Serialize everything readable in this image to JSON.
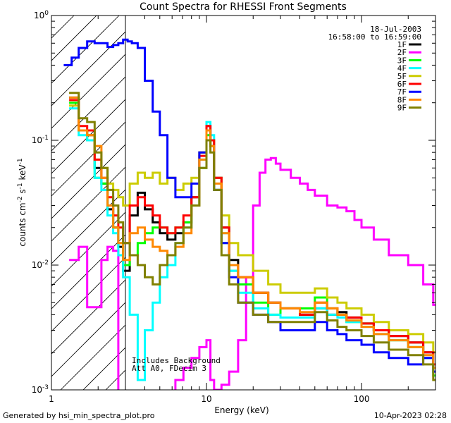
{
  "chart_data": {
    "type": "line",
    "title": "Count Spectra for RHESSI Front Segments",
    "xlabel": "Energy (keV)",
    "ylabel_parts": [
      "counts cm",
      "-2",
      " s",
      "-1",
      " keV",
      "-1"
    ],
    "xscale": "log",
    "yscale": "log",
    "xlim": [
      1.0,
      300.0
    ],
    "ylim": [
      0.001,
      1.0
    ],
    "x_tick_labels": [
      {
        "value": 1,
        "label": "1"
      },
      {
        "value": 10,
        "label": "10"
      },
      {
        "value": 100,
        "label": "100"
      }
    ],
    "y_tick_labels": [
      {
        "value": 1.0,
        "base": "10",
        "exp": "0"
      },
      {
        "value": 0.1,
        "base": "10",
        "exp": "-1"
      },
      {
        "value": 0.01,
        "base": "10",
        "exp": "-2"
      },
      {
        "value": 0.001,
        "base": "10",
        "exp": "-3"
      }
    ],
    "hatched_region_keV": [
      1.0,
      3.0
    ],
    "legend_position": "top-right",
    "date": "18-Jul-2003",
    "time_range": "16:58:00 to 16:59:00",
    "annotation_lines": [
      "Includes Background",
      "Att A0, FDecim 3"
    ],
    "series": [
      {
        "name": "1F",
        "color": "#000000",
        "x": [
          1.3,
          1.5,
          1.7,
          1.9,
          2.1,
          2.3,
          2.5,
          2.7,
          2.9,
          3.2,
          3.6,
          4.0,
          4.5,
          5.0,
          5.6,
          6.3,
          7.1,
          8.0,
          9.0,
          10.0,
          10.6,
          11.2,
          12.5,
          14,
          16,
          20,
          25,
          30,
          40,
          50,
          60,
          70,
          80,
          100,
          120,
          150,
          200,
          250,
          290
        ],
        "y": [
          0.22,
          0.12,
          0.11,
          0.06,
          0.045,
          0.028,
          0.02,
          0.014,
          0.009,
          0.025,
          0.038,
          0.028,
          0.022,
          0.018,
          0.016,
          0.018,
          0.022,
          0.035,
          0.08,
          0.13,
          0.1,
          0.05,
          0.02,
          0.011,
          0.008,
          0.006,
          0.005,
          0.0045,
          0.004,
          0.0045,
          0.004,
          0.0042,
          0.0038,
          0.0034,
          0.003,
          0.0027,
          0.0024,
          0.002,
          0.0015
        ]
      },
      {
        "name": "2F",
        "color": "#ff00ff",
        "x": [
          1.3,
          1.5,
          1.7,
          1.9,
          2.1,
          2.3,
          2.5,
          2.7,
          2.9,
          3.2,
          3.6,
          4.0,
          4.5,
          5.0,
          5.6,
          6.3,
          7.1,
          8.0,
          9.0,
          10.0,
          10.6,
          11.2,
          12.5,
          14,
          16,
          18,
          20,
          22,
          24,
          26,
          28,
          30,
          35,
          40,
          45,
          50,
          60,
          70,
          80,
          90,
          100,
          120,
          150,
          200,
          250,
          290
        ],
        "y": [
          0.011,
          0.014,
          0.0046,
          0.0046,
          0.011,
          0.014,
          0.013,
          0.0,
          0.0,
          0.0,
          0.0,
          0.0,
          0.0,
          0.0,
          0.0,
          0.0012,
          0.0015,
          0.0018,
          0.0022,
          0.0025,
          0.0012,
          0.001,
          0.0011,
          0.0014,
          0.0025,
          0.008,
          0.03,
          0.055,
          0.07,
          0.072,
          0.065,
          0.058,
          0.05,
          0.045,
          0.04,
          0.036,
          0.03,
          0.029,
          0.027,
          0.023,
          0.02,
          0.016,
          0.012,
          0.01,
          0.007,
          0.0048
        ]
      },
      {
        "name": "3F",
        "color": "#00ff00",
        "x": [
          1.3,
          1.5,
          1.7,
          1.9,
          2.1,
          2.3,
          2.5,
          2.7,
          2.9,
          3.2,
          3.6,
          4.0,
          4.5,
          5.0,
          5.6,
          6.3,
          7.1,
          8.0,
          9.0,
          10.0,
          10.6,
          11.2,
          12.5,
          14,
          16,
          20,
          25,
          30,
          40,
          50,
          60,
          70,
          80,
          100,
          120,
          150,
          200,
          250,
          290
        ],
        "y": [
          0.2,
          0.12,
          0.1,
          0.05,
          0.045,
          0.03,
          0.02,
          0.015,
          0.01,
          0.012,
          0.015,
          0.018,
          0.02,
          0.02,
          0.018,
          0.02,
          0.022,
          0.03,
          0.06,
          0.11,
          0.09,
          0.04,
          0.015,
          0.009,
          0.007,
          0.005,
          0.004,
          0.0045,
          0.0045,
          0.0055,
          0.0045,
          0.004,
          0.0035,
          0.0034,
          0.003,
          0.0025,
          0.0022,
          0.0018,
          0.0013
        ]
      },
      {
        "name": "4F",
        "color": "#00ffff",
        "x": [
          1.3,
          1.5,
          1.7,
          1.9,
          2.1,
          2.3,
          2.5,
          2.7,
          2.9,
          3.2,
          3.6,
          4.0,
          4.5,
          5.0,
          5.6,
          6.3,
          7.1,
          8.0,
          9.0,
          10.0,
          10.6,
          11.2,
          12.5,
          14,
          16,
          20,
          25,
          30,
          40,
          50,
          60,
          70,
          80,
          100,
          120,
          150,
          200,
          250,
          290
        ],
        "y": [
          0.18,
          0.11,
          0.1,
          0.05,
          0.04,
          0.025,
          0.018,
          0.012,
          0.008,
          0.004,
          0.0012,
          0.003,
          0.005,
          0.008,
          0.01,
          0.015,
          0.02,
          0.03,
          0.07,
          0.14,
          0.11,
          0.05,
          0.018,
          0.009,
          0.006,
          0.0045,
          0.004,
          0.0038,
          0.0038,
          0.0045,
          0.004,
          0.0038,
          0.0035,
          0.0032,
          0.0028,
          0.0025,
          0.0022,
          0.0018,
          0.0014
        ]
      },
      {
        "name": "5F",
        "color": "#cccc00",
        "x": [
          1.3,
          1.5,
          1.7,
          1.9,
          2.1,
          2.3,
          2.5,
          2.7,
          2.9,
          3.2,
          3.6,
          4.0,
          4.5,
          5.0,
          5.6,
          6.3,
          7.1,
          8.0,
          9.0,
          10.0,
          10.6,
          11.2,
          12.5,
          14,
          16,
          20,
          25,
          30,
          40,
          50,
          60,
          70,
          80,
          100,
          120,
          150,
          200,
          250,
          290
        ],
        "y": [
          0.19,
          0.12,
          0.11,
          0.07,
          0.06,
          0.045,
          0.04,
          0.035,
          0.03,
          0.045,
          0.055,
          0.05,
          0.055,
          0.045,
          0.05,
          0.04,
          0.045,
          0.05,
          0.08,
          0.12,
          0.1,
          0.05,
          0.025,
          0.015,
          0.012,
          0.009,
          0.007,
          0.006,
          0.006,
          0.0065,
          0.0055,
          0.005,
          0.0045,
          0.004,
          0.0035,
          0.003,
          0.0028,
          0.0024,
          0.002
        ]
      },
      {
        "name": "6F",
        "color": "#ff0000",
        "x": [
          1.3,
          1.5,
          1.7,
          1.9,
          2.1,
          2.3,
          2.5,
          2.7,
          2.9,
          3.2,
          3.6,
          4.0,
          4.5,
          5.0,
          5.6,
          6.3,
          7.1,
          8.0,
          9.0,
          10.0,
          10.6,
          11.2,
          12.5,
          14,
          16,
          20,
          25,
          30,
          40,
          50,
          60,
          70,
          80,
          100,
          120,
          150,
          200,
          250,
          290
        ],
        "y": [
          0.21,
          0.13,
          0.12,
          0.07,
          0.05,
          0.035,
          0.025,
          0.02,
          0.015,
          0.03,
          0.035,
          0.03,
          0.025,
          0.02,
          0.018,
          0.02,
          0.025,
          0.035,
          0.075,
          0.13,
          0.1,
          0.05,
          0.02,
          0.01,
          0.008,
          0.006,
          0.005,
          0.0045,
          0.004,
          0.005,
          0.0045,
          0.004,
          0.0038,
          0.0034,
          0.003,
          0.0027,
          0.0024,
          0.002,
          0.0016
        ]
      },
      {
        "name": "7F",
        "color": "#0000ff",
        "x": [
          1.2,
          1.35,
          1.5,
          1.7,
          1.9,
          2.1,
          2.3,
          2.5,
          2.7,
          2.9,
          3.1,
          3.3,
          3.6,
          4.0,
          4.5,
          5.0,
          5.6,
          6.3,
          7.1,
          8.0,
          9.0,
          10.0,
          10.6,
          11.2,
          12.5,
          14,
          16,
          20,
          25,
          30,
          40,
          50,
          60,
          70,
          80,
          100,
          120,
          150,
          200,
          250,
          290
        ],
        "y": [
          0.4,
          0.46,
          0.55,
          0.62,
          0.6,
          0.6,
          0.56,
          0.58,
          0.6,
          0.64,
          0.62,
          0.6,
          0.55,
          0.3,
          0.17,
          0.11,
          0.05,
          0.035,
          0.035,
          0.045,
          0.08,
          0.12,
          0.09,
          0.04,
          0.015,
          0.008,
          0.005,
          0.004,
          0.0035,
          0.003,
          0.003,
          0.0035,
          0.003,
          0.0028,
          0.0025,
          0.0023,
          0.002,
          0.0018,
          0.0016,
          0.0018,
          0.0014
        ]
      },
      {
        "name": "8F",
        "color": "#ff8800",
        "x": [
          1.3,
          1.5,
          1.7,
          1.9,
          2.1,
          2.3,
          2.5,
          2.7,
          2.9,
          3.2,
          3.6,
          4.0,
          4.5,
          5.0,
          5.6,
          6.3,
          7.1,
          8.0,
          9.0,
          10.0,
          10.6,
          11.2,
          12.5,
          14,
          16,
          20,
          25,
          30,
          40,
          50,
          60,
          70,
          80,
          100,
          120,
          150,
          200,
          250,
          290
        ],
        "y": [
          0.22,
          0.12,
          0.11,
          0.09,
          0.05,
          0.03,
          0.02,
          0.015,
          0.011,
          0.018,
          0.02,
          0.016,
          0.014,
          0.013,
          0.012,
          0.014,
          0.018,
          0.03,
          0.07,
          0.12,
          0.09,
          0.045,
          0.018,
          0.01,
          0.008,
          0.006,
          0.005,
          0.0045,
          0.0042,
          0.005,
          0.0045,
          0.004,
          0.0036,
          0.0032,
          0.0028,
          0.0025,
          0.0022,
          0.0019,
          0.0015
        ]
      },
      {
        "name": "9F",
        "color": "#808000",
        "x": [
          1.3,
          1.5,
          1.7,
          1.9,
          2.1,
          2.3,
          2.5,
          2.7,
          2.9,
          3.2,
          3.6,
          4.0,
          4.5,
          5.0,
          5.6,
          6.3,
          7.1,
          8.0,
          9.0,
          10.0,
          10.6,
          11.2,
          12.5,
          14,
          16,
          20,
          25,
          30,
          40,
          50,
          60,
          70,
          80,
          100,
          120,
          150,
          200,
          250,
          290
        ],
        "y": [
          0.24,
          0.15,
          0.14,
          0.08,
          0.06,
          0.04,
          0.03,
          0.022,
          0.015,
          0.012,
          0.01,
          0.008,
          0.007,
          0.01,
          0.012,
          0.015,
          0.02,
          0.03,
          0.06,
          0.1,
          0.08,
          0.04,
          0.012,
          0.007,
          0.005,
          0.004,
          0.0035,
          0.0035,
          0.0035,
          0.0042,
          0.0036,
          0.0032,
          0.003,
          0.0027,
          0.0024,
          0.0021,
          0.0019,
          0.0016,
          0.0012
        ]
      }
    ]
  },
  "footer": {
    "generated_by": "Generated by hsi_min_spectra_plot.pro",
    "timestamp": "10-Apr-2023 02:28"
  }
}
